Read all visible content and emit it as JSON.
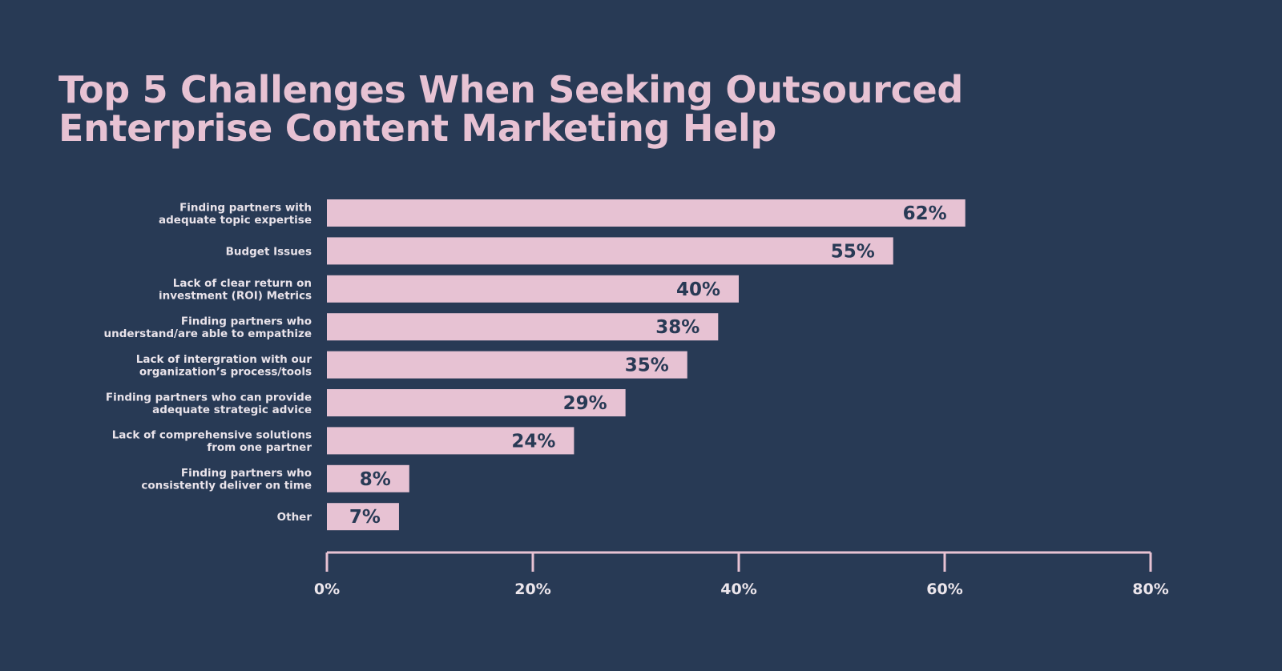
{
  "colors": {
    "background": "#283a55",
    "bar": "#e7c2d3",
    "title": "#e7c2d3",
    "axis": "#e7c2d3",
    "label_text": "#ece6ec",
    "value_text": "#283a55"
  },
  "chart_data": {
    "type": "bar",
    "orientation": "horizontal",
    "title_lines": [
      "Top 5 Challenges When Seeking Outsourced",
      "Enterprise Content Marketing Help"
    ],
    "categories": [
      [
        "Finding partners with",
        "adequate topic expertise"
      ],
      [
        "Budget Issues"
      ],
      [
        "Lack of clear return on",
        "investment (ROI) Metrics"
      ],
      [
        "Finding partners who",
        "understand/are able to empathize"
      ],
      [
        "Lack of intergration with our",
        "organization’s process/tools"
      ],
      [
        "Finding partners who can provide",
        "adequate strategic advice"
      ],
      [
        "Lack of comprehensive solutions",
        "from one partner"
      ],
      [
        "Finding partners who",
        "consistently deliver on time"
      ],
      [
        "Other"
      ]
    ],
    "values": [
      62,
      55,
      40,
      38,
      35,
      29,
      24,
      8,
      7
    ],
    "value_labels": [
      "62%",
      "55%",
      "40%",
      "38%",
      "35%",
      "29%",
      "24%",
      "8%",
      "7%"
    ],
    "xlim": [
      0,
      80
    ],
    "xticks": [
      0,
      20,
      40,
      60,
      80
    ],
    "xtick_labels": [
      "0%",
      "20%",
      "40%",
      "60%",
      "80%"
    ],
    "grid": false,
    "legend": "none"
  }
}
